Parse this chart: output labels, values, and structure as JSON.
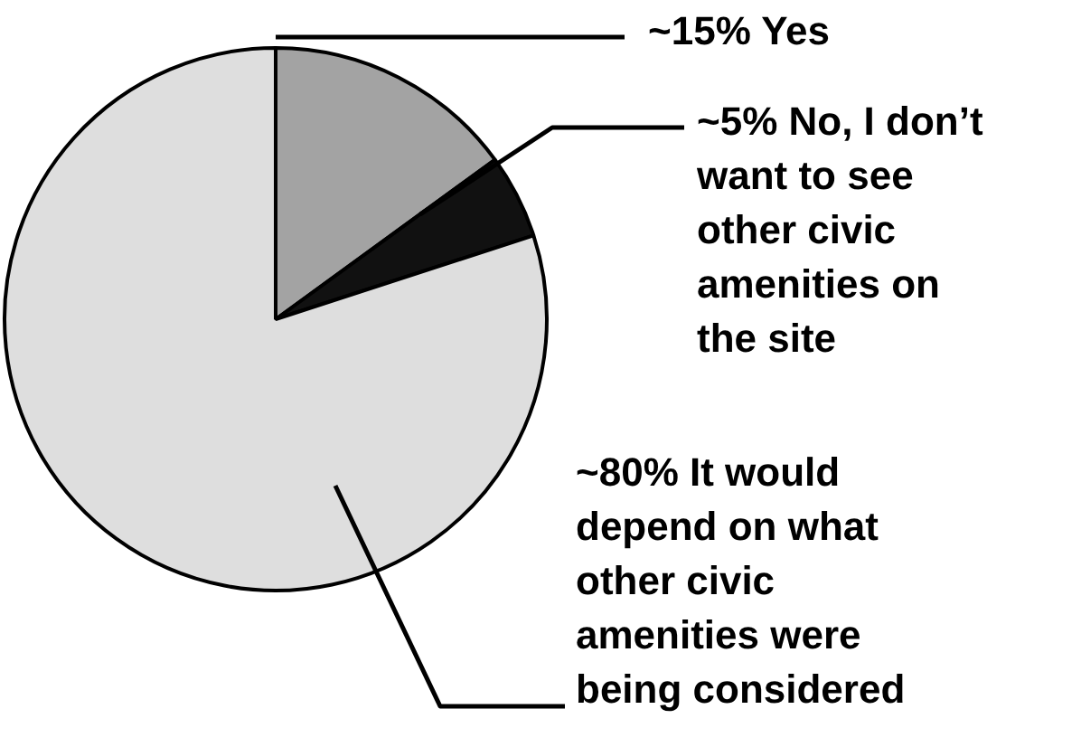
{
  "chart_data": {
    "type": "pie",
    "categories": [
      "Yes",
      "No, I don’t want to see other civic amenities on the site",
      "It would depend on what other civic amenities were being considered"
    ],
    "values": [
      15,
      5,
      80
    ],
    "value_labels": [
      "~15%",
      "~5%",
      "~80%"
    ],
    "colors": [
      "#a3a3a3",
      "#111111",
      "#dedede"
    ]
  }
}
